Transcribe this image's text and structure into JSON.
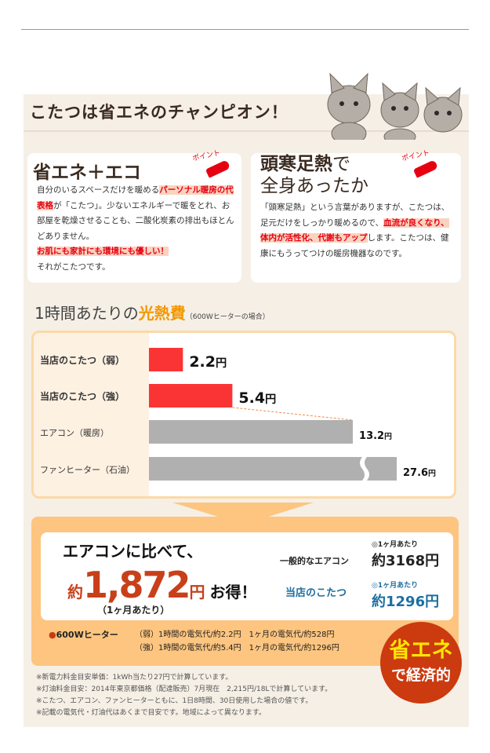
{
  "title": "こたつは省エネのチャンピオン！",
  "card1": {
    "heading": "省エネ＋エコ",
    "point": "ポイント",
    "t1": "自分のいるスペースだけを暖める",
    "h1": "パーソナル暖房の代表格",
    "t2": "が「こたつ」。少ないエネルギーで暖をとれ、お部屋を乾燥させることも、二酸化炭素の排出もほとんどありません。",
    "h2": "お肌にも家計にも環境にも優しい！",
    "t3": "それがこたつです。"
  },
  "card2": {
    "heading1": "頭寒足熱",
    "heading1b": "で",
    "heading2": "全身あったか",
    "point": "ポイント",
    "t1": "「頭寒足熱」という言葉がありますが、こたつは、足元だけをしっかり暖めるので、",
    "h1": "血流が良くなり、体内が活性化、代謝もアップ",
    "t2": "します。こたつは、健康にもうってつけの暖房機器なのです。"
  },
  "section": {
    "pre": "1時間あたりの",
    "accent": "光熱費",
    "sub": "（600Wヒーターの場合）"
  },
  "chart_data": {
    "type": "bar",
    "orientation": "horizontal",
    "unit": "円",
    "categories": [
      "当店のこたつ（弱）",
      "当店のこたつ（強）",
      "エアコン（暖房）",
      "ファンヒーター（石油）"
    ],
    "values": [
      2.2,
      5.4,
      13.2,
      27.6
    ],
    "labels": [
      "2.2",
      "5.4",
      "13.2",
      "27.6"
    ],
    "colors": [
      "#fa3434",
      "#fa3434",
      "#b0b0b0",
      "#b0b0b0"
    ],
    "broken_axis_last_bar": true
  },
  "compare": {
    "lead": "エアコンに比べて、",
    "approx": "約",
    "amount": "1,872",
    "yen": "円",
    "gain": "お得！",
    "per": "（1ヶ月あたり）",
    "rows": [
      {
        "label": "一般的なエアコン",
        "note": "◎1ヶ月あたり",
        "value": "約3168円"
      },
      {
        "label": "当店のこたつ",
        "note": "◎1ヶ月あたり",
        "value": "約1296円"
      }
    ]
  },
  "heater": {
    "bullet": "●",
    "label": "600Wヒーター",
    "lines": [
      "（弱）1時間の電気代/約2.2円　1ヶ月の電気代/約528円",
      "（強）1時間の電気代/約5.4円　1ヶ月の電気代/約1296円"
    ]
  },
  "badge": {
    "line1": "省エネ",
    "line2": "で経済的"
  },
  "footnotes": [
    "※新電力料金目安単価：1kWh当たり27円で計算しています。",
    "※灯油料金目安：2014年東京都価格（配達販売）7月現在　2,215円/18Lで計算しています。",
    "※こたつ、エアコン、ファンヒーターともに、1日8時間、30日使用した場合の値です。",
    "※記載の電気代・灯油代はあくまで目安です。地域によって異なります。"
  ]
}
